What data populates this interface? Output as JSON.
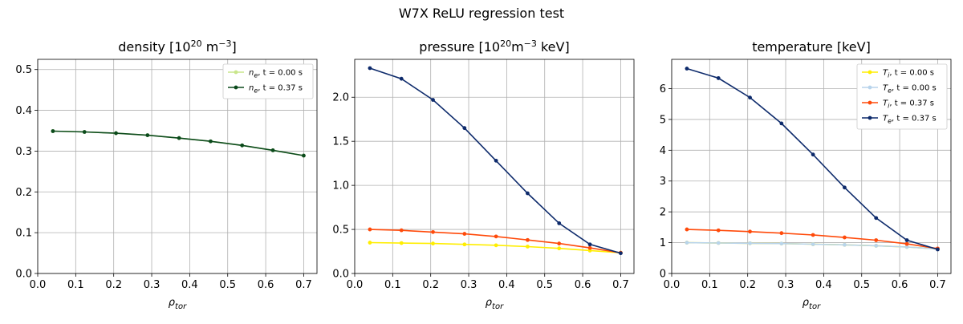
{
  "figure": {
    "suptitle": "W7X ReLU regression test"
  },
  "chart_data": [
    {
      "type": "line",
      "title": "density [10^20 m^-3]",
      "title_parts": [
        "density [10",
        "20",
        " m",
        "−3",
        "]"
      ],
      "xlabel": "ρ_tor",
      "ylabel": "",
      "xlim": [
        0.0,
        0.735
      ],
      "ylim": [
        0.0,
        0.525
      ],
      "x_ticks": [
        "0.0",
        "0.1",
        "0.2",
        "0.3",
        "0.4",
        "0.5",
        "0.6",
        "0.7"
      ],
      "y_ticks": [
        "0.0",
        "0.1",
        "0.2",
        "0.3",
        "0.4",
        "0.5"
      ],
      "grid": true,
      "legend_position": "top-right",
      "x": [
        0.04,
        0.123,
        0.206,
        0.289,
        0.372,
        0.455,
        0.538,
        0.619,
        0.7
      ],
      "series": [
        {
          "name": "n_e, t = 0.00 s",
          "legend": [
            "n",
            "e",
            ", t = 0.00 s"
          ],
          "color": "#c9e68b",
          "values": [
            0.349,
            0.347,
            0.344,
            0.339,
            0.332,
            0.324,
            0.314,
            0.302,
            0.289
          ]
        },
        {
          "name": "n_e, t = 0.37 s",
          "legend": [
            "n",
            "e",
            ", t = 0.37 s"
          ],
          "color": "#0b4a1c",
          "values": [
            0.349,
            0.347,
            0.344,
            0.339,
            0.332,
            0.324,
            0.314,
            0.302,
            0.289
          ]
        }
      ]
    },
    {
      "type": "line",
      "title": "pressure [10^20 m^-3 keV]",
      "title_parts": [
        "pressure [10",
        "20",
        "m",
        "−3",
        " keV]"
      ],
      "xlabel": "ρ_tor",
      "ylabel": "",
      "xlim": [
        0.0,
        0.735
      ],
      "ylim": [
        0.0,
        2.43
      ],
      "x_ticks": [
        "0.0",
        "0.1",
        "0.2",
        "0.3",
        "0.4",
        "0.5",
        "0.6",
        "0.7"
      ],
      "y_ticks": [
        "0.0",
        "0.5",
        "1.0",
        "1.5",
        "2.0"
      ],
      "grid": true,
      "legend_position": "none",
      "x": [
        0.04,
        0.123,
        0.206,
        0.289,
        0.372,
        0.455,
        0.538,
        0.619,
        0.7
      ],
      "series": [
        {
          "color": "#ffee00",
          "values": [
            0.35,
            0.345,
            0.34,
            0.33,
            0.32,
            0.305,
            0.285,
            0.26,
            0.235
          ]
        },
        {
          "color": "#ff4a0a",
          "values": [
            0.5,
            0.49,
            0.47,
            0.45,
            0.42,
            0.38,
            0.34,
            0.29,
            0.235
          ]
        },
        {
          "color": "#0d2a6b",
          "values": [
            2.33,
            2.21,
            1.97,
            1.65,
            1.28,
            0.91,
            0.57,
            0.33,
            0.23
          ]
        }
      ]
    },
    {
      "type": "line",
      "title": "temperature [keV]",
      "title_parts": [
        "temperature [keV]",
        "",
        "",
        "",
        ""
      ],
      "xlabel": "ρ_tor",
      "ylabel": "",
      "xlim": [
        0.0,
        0.735
      ],
      "ylim": [
        0.0,
        6.95
      ],
      "x_ticks": [
        "0.0",
        "0.1",
        "0.2",
        "0.3",
        "0.4",
        "0.5",
        "0.6",
        "0.7"
      ],
      "y_ticks": [
        "0",
        "1",
        "2",
        "3",
        "4",
        "5",
        "6"
      ],
      "grid": true,
      "legend_position": "top-right",
      "x": [
        0.04,
        0.123,
        0.206,
        0.289,
        0.372,
        0.455,
        0.538,
        0.619,
        0.7
      ],
      "series": [
        {
          "name": "T_i, t = 0.00 s",
          "legend": [
            "T",
            "i",
            ", t = 0.00 s"
          ],
          "color": "#ffee00",
          "values": [
            1.0,
            0.99,
            0.98,
            0.97,
            0.95,
            0.93,
            0.9,
            0.86,
            0.8
          ]
        },
        {
          "name": "T_e, t = 0.00 s",
          "legend": [
            "T",
            "e",
            ", t = 0.00 s"
          ],
          "color": "#b8d4ec",
          "values": [
            1.0,
            0.99,
            0.98,
            0.97,
            0.95,
            0.93,
            0.9,
            0.86,
            0.8
          ]
        },
        {
          "name": "T_i, t = 0.37 s",
          "legend": [
            "T",
            "i",
            ", t = 0.37 s"
          ],
          "color": "#ff4a0a",
          "values": [
            1.43,
            1.4,
            1.36,
            1.31,
            1.25,
            1.17,
            1.08,
            0.96,
            0.81
          ]
        },
        {
          "name": "T_e, t = 0.37 s",
          "legend": [
            "T",
            "e",
            ", t = 0.37 s"
          ],
          "color": "#0d2a6b",
          "values": [
            6.65,
            6.34,
            5.71,
            4.87,
            3.86,
            2.79,
            1.8,
            1.08,
            0.78
          ]
        }
      ]
    }
  ]
}
